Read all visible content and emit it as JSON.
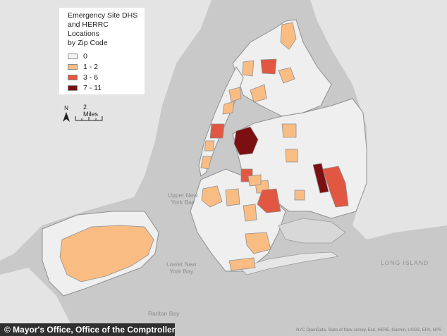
{
  "legend": {
    "title": "Emergency Site DHS\nand HERRC Locations\nby Zip Code",
    "items": [
      {
        "label": "0",
        "color": "#f5f5f5"
      },
      {
        "label": "1 - 2",
        "color": "#f9bd84"
      },
      {
        "label": "3 - 6",
        "color": "#e15742"
      },
      {
        "label": "7 - 11",
        "color": "#7c0f12"
      }
    ]
  },
  "scale_bar": {
    "label": "2 Miles",
    "north_label": "N"
  },
  "water_labels": {
    "upper_bay": "Upper New\nYork Bay",
    "lower_bay": "Lower New\nYork Bay",
    "raritan": "Raritan Bay",
    "long_island": "LONG ISLAND"
  },
  "credit": "© Mayor's Office, Office of the Comptroller",
  "attribution": "NYC OpenData, State of New Jersey, Esri, HERE, Garmin, USGS, EPA, NPS",
  "colors": {
    "land": "#e6e6e6",
    "water": "#c9c9c9",
    "zip_fill": "#f5f5f5",
    "zip_border": "#8f8f8f"
  }
}
